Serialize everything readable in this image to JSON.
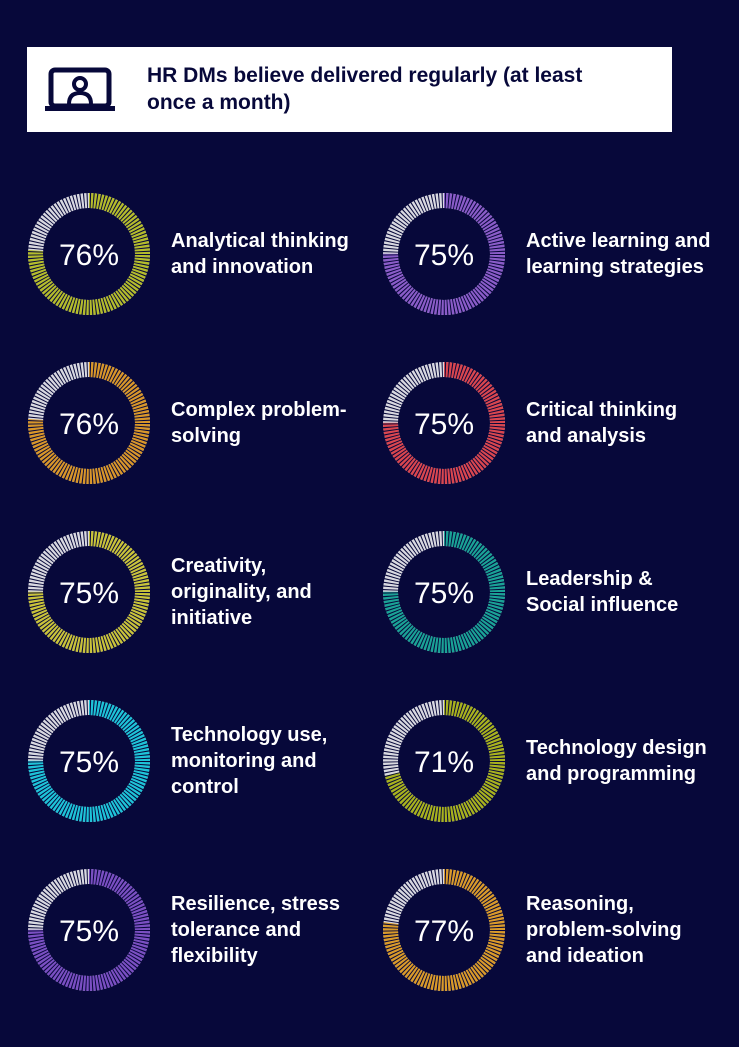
{
  "header": {
    "title": "HR DMs believe delivered regularly (at least once a month)"
  },
  "chart_data": [
    {
      "type": "donut",
      "title": "Analytical thinking and innovation",
      "values": [
        76
      ],
      "value_labels": [
        "76%"
      ],
      "color": "#b4bc2c"
    },
    {
      "type": "donut",
      "title": "Active learning and learning strategies",
      "values": [
        75
      ],
      "value_labels": [
        "75%"
      ],
      "color": "#8a5cc8"
    },
    {
      "type": "donut",
      "title": "Complex problem-solving",
      "values": [
        76
      ],
      "value_labels": [
        "76%"
      ],
      "color": "#d8962a"
    },
    {
      "type": "donut",
      "title": "Critical thinking and analysis",
      "values": [
        75
      ],
      "value_labels": [
        "75%"
      ],
      "color": "#d9464f"
    },
    {
      "type": "donut",
      "title": "Creativity, originality, and initiative",
      "values": [
        75
      ],
      "value_labels": [
        "75%"
      ],
      "color": "#c9c33a"
    },
    {
      "type": "donut",
      "title": "Leadership & Social influence",
      "values": [
        75
      ],
      "value_labels": [
        "75%"
      ],
      "color": "#1aa296"
    },
    {
      "type": "donut",
      "title": "Technology use, monitoring and control",
      "values": [
        75
      ],
      "value_labels": [
        "75%"
      ],
      "color": "#1ec3d8"
    },
    {
      "type": "donut",
      "title": "Technology design and programming",
      "values": [
        71
      ],
      "value_labels": [
        "71%"
      ],
      "color": "#a8b21e"
    },
    {
      "type": "donut",
      "title": "Resilience, stress tolerance and flexibility",
      "values": [
        75
      ],
      "value_labels": [
        "75%"
      ],
      "color": "#7a4fc2"
    },
    {
      "type": "donut",
      "title": "Reasoning, problem-solving and ideation",
      "values": [
        77
      ],
      "value_labels": [
        "77%"
      ],
      "color": "#d99a2a"
    }
  ]
}
